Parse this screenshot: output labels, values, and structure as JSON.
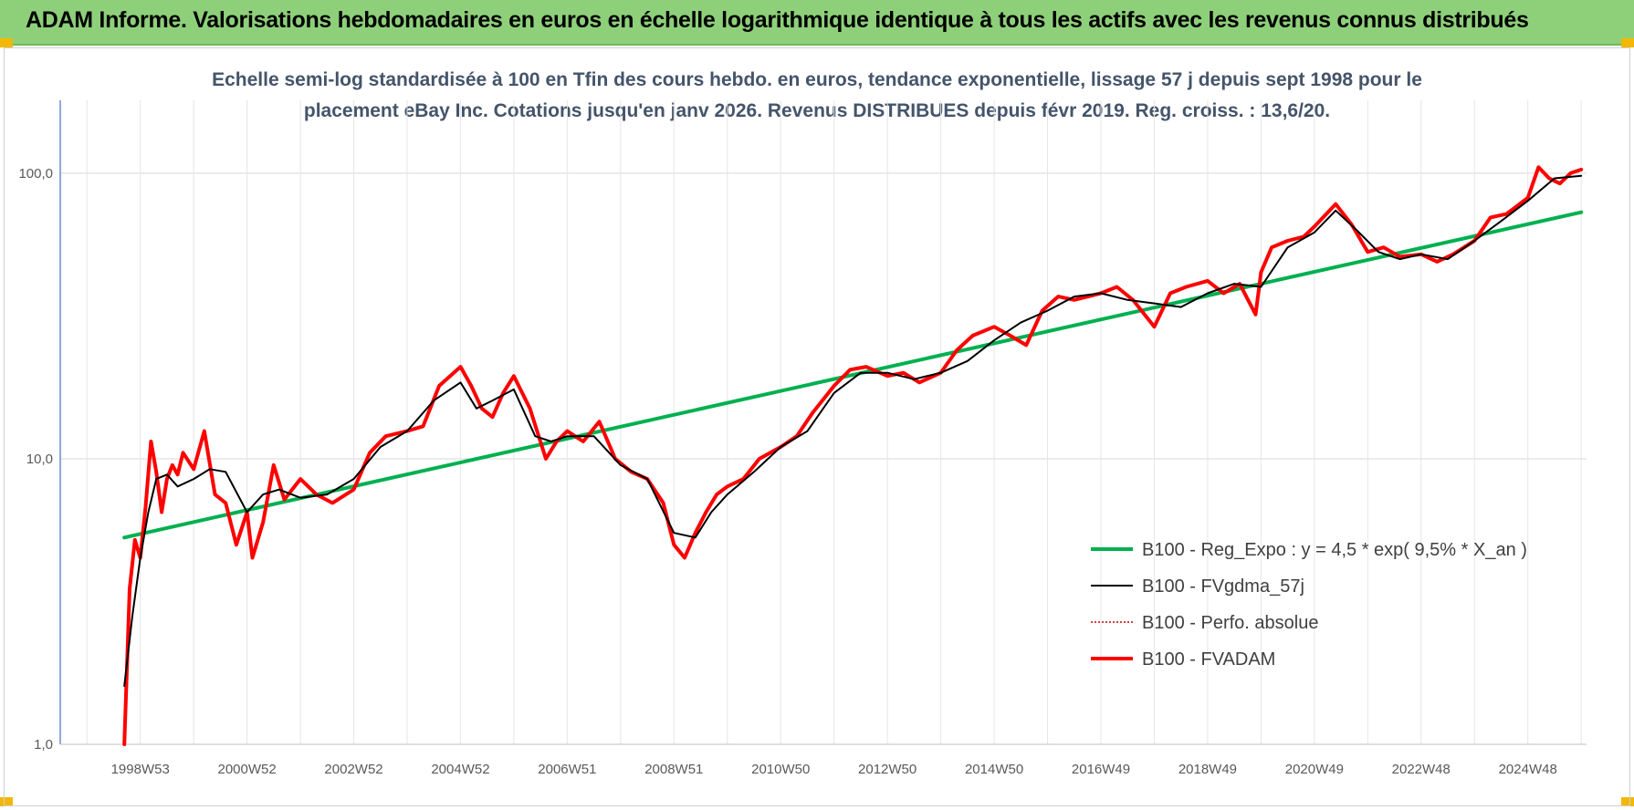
{
  "banner": {
    "title": "ADAM Informe. Valorisations hebdomadaires en euros en échelle logarithmique identique à tous les actifs avec les revenus connus distribués"
  },
  "colors": {
    "banner_bg": "#8ed07a",
    "corner": "#f2b807",
    "trend": "#00b050",
    "smooth": "#000000",
    "perf": "#c00000",
    "fvadam": "#ff0000",
    "title_text": "#44546a"
  },
  "chart_data": {
    "type": "line",
    "title_line1": "Echelle semi-log standardisée à 100 en Tfin des cours hebdo. en euros, tendance exponentielle, lissage 57 j depuis sept 1998 pour le",
    "title_line2": "placement eBay Inc. Cotations jusqu'en janv 2026. Revenus DISTRIBUES depuis févr 2019. Reg. croiss. : 13,6/20.",
    "y_scale": "log",
    "ylim": [
      1,
      180
    ],
    "y_ticks": [
      "1,0",
      "10,0",
      "100,0"
    ],
    "x_range": [
      1997.5,
      2026.1
    ],
    "x_ticks": [
      {
        "x": 1999.0,
        "label": "1998W53"
      },
      {
        "x": 2001.0,
        "label": "2000W52"
      },
      {
        "x": 2003.0,
        "label": "2002W52"
      },
      {
        "x": 2005.0,
        "label": "2004W52"
      },
      {
        "x": 2007.0,
        "label": "2006W51"
      },
      {
        "x": 2009.0,
        "label": "2008W51"
      },
      {
        "x": 2011.0,
        "label": "2010W50"
      },
      {
        "x": 2013.0,
        "label": "2012W50"
      },
      {
        "x": 2015.0,
        "label": "2014W50"
      },
      {
        "x": 2017.0,
        "label": "2016W49"
      },
      {
        "x": 2019.0,
        "label": "2018W49"
      },
      {
        "x": 2021.0,
        "label": "2020W49"
      },
      {
        "x": 2023.0,
        "label": "2022W48"
      },
      {
        "x": 2025.0,
        "label": "2024W48"
      }
    ],
    "grid": true,
    "legend_position": "right",
    "series": [
      {
        "name": "B100 - Reg_Expo : y = 4,5 * exp( 9,5% *  X_an )",
        "color": "#00b050",
        "style": "solid-thick",
        "x": [
          1998.7,
          2026.0
        ],
        "y": [
          5.3,
          73
        ]
      },
      {
        "name": "B100 - FVgdma_57j",
        "color": "#000000",
        "style": "solid",
        "x": [
          1998.7,
          1998.85,
          1999.0,
          1999.15,
          1999.3,
          1999.5,
          1999.7,
          2000.0,
          2000.3,
          2000.6,
          2001.0,
          2001.3,
          2001.6,
          2002.0,
          2002.5,
          2003.0,
          2003.5,
          2004.0,
          2004.5,
          2005.0,
          2005.3,
          2005.6,
          2006.0,
          2006.4,
          2006.7,
          2007.0,
          2007.5,
          2008.0,
          2008.5,
          2009.0,
          2009.4,
          2009.7,
          2010.0,
          2010.5,
          2011.0,
          2011.5,
          2012.0,
          2012.5,
          2013.0,
          2013.5,
          2014.0,
          2014.5,
          2015.0,
          2015.5,
          2016.0,
          2016.5,
          2017.0,
          2017.5,
          2018.0,
          2018.5,
          2019.0,
          2019.5,
          2020.0,
          2020.5,
          2021.0,
          2021.4,
          2021.8,
          2022.2,
          2022.6,
          2023.0,
          2023.5,
          2024.0,
          2024.5,
          2025.0,
          2025.5,
          2026.0
        ],
        "y": [
          1.6,
          2.8,
          4.5,
          6.5,
          8.5,
          8.8,
          8.0,
          8.5,
          9.2,
          9.0,
          6.5,
          7.5,
          7.8,
          7.3,
          7.5,
          8.5,
          11,
          12.5,
          16,
          18.5,
          15,
          16,
          17.5,
          12,
          11.5,
          12,
          12,
          9.5,
          8.5,
          5.5,
          5.3,
          6.5,
          7.5,
          9,
          11,
          12.5,
          17,
          20,
          20,
          19,
          20,
          22,
          26,
          30,
          33,
          37,
          38,
          36,
          35,
          34,
          38,
          41,
          40,
          55,
          62,
          74,
          63,
          53,
          50,
          52,
          50,
          58,
          68,
          80,
          96,
          98
        ]
      },
      {
        "name": "B100 - Perfo. absolue",
        "color": "#c00000",
        "style": "dotted",
        "x": [],
        "y": []
      },
      {
        "name": "B100 - FVADAM",
        "color": "#ff0000",
        "style": "solid-thick",
        "x": [
          1998.7,
          1998.8,
          1998.9,
          1999.0,
          1999.1,
          1999.2,
          1999.3,
          1999.4,
          1999.5,
          1999.6,
          1999.7,
          1999.8,
          2000.0,
          2000.2,
          2000.4,
          2000.6,
          2000.8,
          2001.0,
          2001.1,
          2001.3,
          2001.5,
          2001.7,
          2002.0,
          2002.3,
          2002.6,
          2003.0,
          2003.3,
          2003.6,
          2004.0,
          2004.3,
          2004.6,
          2005.0,
          2005.2,
          2005.4,
          2005.6,
          2005.8,
          2006.0,
          2006.3,
          2006.6,
          2006.8,
          2007.0,
          2007.3,
          2007.6,
          2007.9,
          2008.2,
          2008.5,
          2008.8,
          2009.0,
          2009.2,
          2009.4,
          2009.6,
          2009.8,
          2010.0,
          2010.3,
          2010.6,
          2011.0,
          2011.3,
          2011.6,
          2012.0,
          2012.3,
          2012.6,
          2013.0,
          2013.3,
          2013.6,
          2014.0,
          2014.3,
          2014.6,
          2015.0,
          2015.3,
          2015.6,
          2015.9,
          2016.2,
          2016.5,
          2017.0,
          2017.3,
          2017.6,
          2018.0,
          2018.3,
          2018.6,
          2019.0,
          2019.3,
          2019.6,
          2019.9,
          2020.0,
          2020.2,
          2020.5,
          2020.8,
          2021.0,
          2021.4,
          2021.7,
          2022.0,
          2022.3,
          2022.6,
          2023.0,
          2023.3,
          2023.6,
          2024.0,
          2024.3,
          2024.6,
          2025.0,
          2025.2,
          2025.4,
          2025.6,
          2025.8,
          2026.0
        ],
        "y": [
          1.0,
          3.5,
          5.2,
          4.5,
          6.8,
          11.5,
          9.0,
          6.5,
          8.5,
          9.5,
          8.8,
          10.5,
          9.2,
          12.5,
          7.5,
          7.0,
          5.0,
          6.5,
          4.5,
          6.0,
          9.5,
          7.2,
          8.5,
          7.5,
          7.0,
          7.8,
          10.5,
          12.0,
          12.5,
          13.0,
          18.0,
          21.0,
          18.0,
          15.0,
          14.0,
          17.0,
          19.5,
          15.0,
          10.0,
          11.5,
          12.5,
          11.5,
          13.5,
          10.0,
          9.0,
          8.5,
          7.0,
          5.0,
          4.5,
          5.5,
          6.5,
          7.5,
          8.0,
          8.5,
          10.0,
          11.0,
          12.0,
          14.5,
          18.0,
          20.5,
          21.0,
          19.5,
          20.0,
          18.5,
          20.0,
          24.0,
          27.0,
          29.0,
          27.0,
          25.0,
          33.0,
          37.0,
          36.0,
          38.0,
          40.0,
          36.0,
          29.0,
          38.0,
          40.0,
          42.0,
          38.0,
          41.0,
          32.0,
          45.0,
          55.0,
          58.0,
          60.0,
          65.0,
          78.0,
          66.0,
          53.0,
          55.0,
          51.0,
          52.0,
          49.0,
          52.0,
          58.0,
          70.0,
          72.0,
          82.0,
          105.0,
          96.0,
          92.0,
          100.0,
          103.0
        ]
      }
    ]
  }
}
